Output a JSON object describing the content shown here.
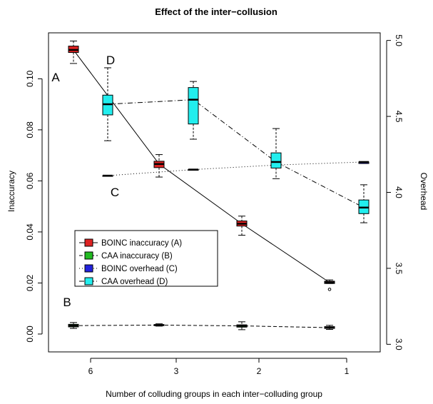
{
  "chart_data": {
    "type": "box",
    "title": "Effect of the inter−collusion",
    "xlabel": "Number of colluding groups in each inter−colluding group",
    "ylabel_left": "Inaccuracy",
    "ylabel_right": "Overhead",
    "categories": [
      "6",
      "3",
      "2",
      "1"
    ],
    "y_left": {
      "ylim": [
        -0.007,
        0.118
      ],
      "ticks": [
        0.0,
        0.02,
        0.04,
        0.06,
        0.08,
        0.1
      ],
      "tick_labels": [
        "0.00",
        "0.02",
        "0.04",
        "0.06",
        "0.08",
        "0.10"
      ]
    },
    "y_right": {
      "ylim": [
        2.95,
        5.05
      ],
      "ticks": [
        3.0,
        3.5,
        4.0,
        4.5,
        5.0
      ],
      "tick_labels": [
        "3.0",
        "3.5",
        "4.0",
        "4.5",
        "5.0"
      ]
    },
    "legend": {
      "position": "bottom-left",
      "entries": [
        "BOINC inaccuracy (A)",
        "CAA inaccuracy (B)",
        "BOINC overhead (C)",
        "CAA overhead (D)"
      ]
    },
    "series": [
      {
        "name": "BOINC inaccuracy (A)",
        "axis": "left",
        "color": "#dd2222",
        "line": "solid",
        "annotation": "A",
        "boxes": [
          {
            "category": "6",
            "min": 0.106,
            "q1": 0.1103,
            "median": 0.1113,
            "q3": 0.1128,
            "max": 0.1148
          },
          {
            "category": "3",
            "min": 0.0615,
            "q1": 0.0652,
            "median": 0.0666,
            "q3": 0.0677,
            "max": 0.0703
          },
          {
            "category": "2",
            "min": 0.0387,
            "q1": 0.0423,
            "median": 0.0432,
            "q3": 0.0443,
            "max": 0.0462
          },
          {
            "category": "1",
            "min": 0.0198,
            "q1": 0.0198,
            "median": 0.0202,
            "q3": 0.0207,
            "max": 0.0212,
            "outliers": [
              0.0175
            ]
          }
        ]
      },
      {
        "name": "CAA inaccuracy (B)",
        "axis": "left",
        "color": "#22bb22",
        "line": "dashed",
        "annotation": "B",
        "boxes": [
          {
            "category": "6",
            "min": 0.0022,
            "q1": 0.0028,
            "median": 0.0033,
            "q3": 0.0038,
            "max": 0.0045
          },
          {
            "category": "3",
            "min": 0.0031,
            "q1": 0.0033,
            "median": 0.0035,
            "q3": 0.0037,
            "max": 0.004
          },
          {
            "category": "2",
            "min": 0.0017,
            "q1": 0.0027,
            "median": 0.0032,
            "q3": 0.0036,
            "max": 0.0048
          },
          {
            "category": "1",
            "min": 0.0018,
            "q1": 0.0022,
            "median": 0.0025,
            "q3": 0.0029,
            "max": 0.0034
          }
        ]
      },
      {
        "name": "BOINC overhead (C)",
        "axis": "right",
        "color": "#2222dd",
        "line": "dotted",
        "annotation": "C",
        "boxes": [
          {
            "category": "6",
            "min": 4.11,
            "q1": 4.11,
            "median": 4.11,
            "q3": 4.11,
            "max": 4.11
          },
          {
            "category": "3",
            "min": 4.15,
            "q1": 4.15,
            "median": 4.15,
            "q3": 4.15,
            "max": 4.15
          },
          {
            "category": "2",
            "min": 4.18,
            "q1": 4.18,
            "median": 4.18,
            "q3": 4.18,
            "max": 4.18
          },
          {
            "category": "1",
            "min": 4.19,
            "q1": 4.19,
            "median": 4.2,
            "q3": 4.2,
            "max": 4.2
          }
        ]
      },
      {
        "name": "CAA overhead (D)",
        "axis": "right",
        "color": "#22eeee",
        "line": "dotdash",
        "annotation": "D",
        "boxes": [
          {
            "category": "6",
            "min": 4.34,
            "q1": 4.51,
            "median": 4.58,
            "q3": 4.64,
            "max": 4.82
          },
          {
            "category": "3",
            "min": 4.35,
            "q1": 4.45,
            "median": 4.61,
            "q3": 4.69,
            "max": 4.73
          },
          {
            "category": "2",
            "min": 4.09,
            "q1": 4.16,
            "median": 4.2,
            "q3": 4.26,
            "max": 4.42
          },
          {
            "category": "1",
            "min": 3.8,
            "q1": 3.86,
            "median": 3.9,
            "q3": 3.95,
            "max": 4.05
          }
        ]
      }
    ]
  }
}
